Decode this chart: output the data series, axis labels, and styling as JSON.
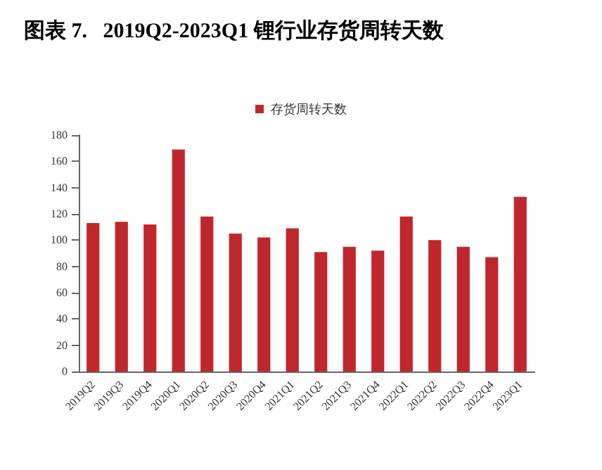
{
  "chart_data": {
    "type": "bar",
    "title": "图表 7.   2019Q2-2023Q1 锂行业存货周转天数",
    "categories": [
      "2019Q2",
      "2019Q3",
      "2019Q4",
      "2020Q1",
      "2020Q2",
      "2020Q3",
      "2020Q4",
      "2021Q1",
      "2021Q2",
      "2021Q3",
      "2021Q4",
      "2022Q1",
      "2022Q2",
      "2022Q3",
      "2022Q4",
      "2023Q1"
    ],
    "series": [
      {
        "name": "存货周转天数",
        "color": "#c0272d",
        "values": [
          113,
          114,
          112,
          169,
          118,
          105,
          102,
          109,
          91,
          95,
          92,
          118,
          100,
          95,
          87,
          133
        ]
      }
    ],
    "ylim": [
      0,
      180
    ],
    "yticks": [
      0,
      20,
      40,
      60,
      80,
      100,
      120,
      140,
      160,
      180
    ],
    "grid": false,
    "legend": "top"
  }
}
